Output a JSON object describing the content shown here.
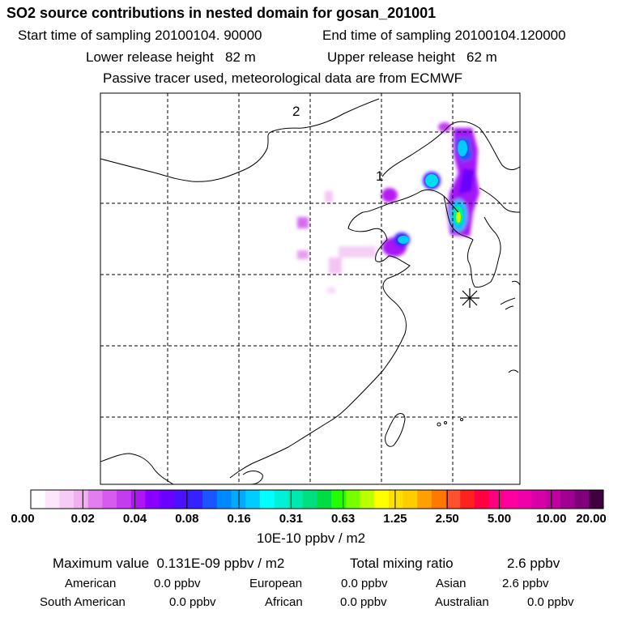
{
  "header": {
    "title": "SO2 source contributions in nested domain for gosan_201001",
    "start_label": "Start time of sampling",
    "start_value": "20100104. 90000",
    "end_label": "End time of sampling",
    "end_value": "20100104.120000",
    "lower_label": "Lower release height",
    "lower_value": "82 m",
    "upper_label": "Upper release height",
    "upper_value": "62 m",
    "note": "Passive tracer used, meteorological data are from ECMWF"
  },
  "map": {
    "labels": [
      "2",
      "1"
    ],
    "marker_icon": "star-receptor-icon"
  },
  "colorbar": {
    "colors": [
      "#ffffff",
      "#fbe6fb",
      "#f6ccf6",
      "#f0b0f0",
      "#e27fee",
      "#d55cee",
      "#c43cf0",
      "#ae16f5",
      "#8a00ff",
      "#6a00ff",
      "#4a10ff",
      "#3322ff",
      "#1a55ff",
      "#0088ff",
      "#00aaff",
      "#00ccff",
      "#00ffff",
      "#00f0d8",
      "#00eab0",
      "#00e080",
      "#00dd44",
      "#22ff00",
      "#77ff00",
      "#bbff00",
      "#ffff00",
      "#ffe000",
      "#ffcc00",
      "#ffa000",
      "#ff7800",
      "#ff5030",
      "#ff2020",
      "#ff0040",
      "#ff0080",
      "#ff00a0",
      "#f000a8",
      "#d800a8",
      "#c000a0",
      "#a00090",
      "#80007c",
      "#400040"
    ],
    "ticks": [
      "0.00",
      "0.02",
      "0.04",
      "0.08",
      "0.16",
      "0.31",
      "0.63",
      "1.25",
      "2.50",
      "5.00",
      "10.00",
      "20.00"
    ],
    "unit": "10E-10 ppbv / m2"
  },
  "summary": {
    "max_label": "Maximum value",
    "max_value": "0.131E-09 ppbv / m2",
    "total_label": "Total mixing ratio",
    "total_value": "2.6 ppbv"
  },
  "regions": [
    {
      "name": "American",
      "value": "0.0 ppbv"
    },
    {
      "name": "European",
      "value": "0.0 ppbv"
    },
    {
      "name": "Asian",
      "value": "2.6 ppbv"
    },
    {
      "name": "South American",
      "value": "0.0 ppbv"
    },
    {
      "name": "African",
      "value": "0.0 ppbv"
    },
    {
      "name": "Australian",
      "value": "0.0 ppbv"
    }
  ]
}
